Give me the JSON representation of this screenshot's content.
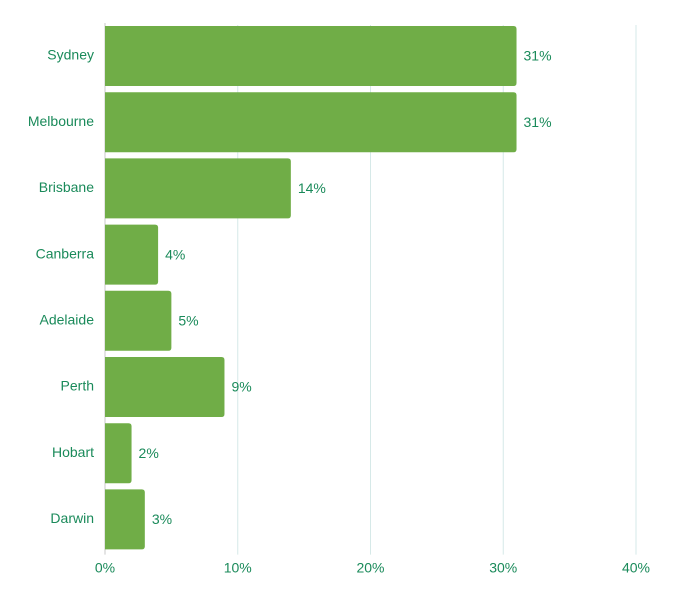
{
  "chart_data": {
    "type": "bar",
    "orientation": "horizontal",
    "categories": [
      "Sydney",
      "Melbourne",
      "Brisbane",
      "Canberra",
      "Adelaide",
      "Perth",
      "Hobart",
      "Darwin"
    ],
    "values": [
      31,
      31,
      14,
      4,
      5,
      9,
      2,
      3
    ],
    "data_labels": [
      "31%",
      "31%",
      "14%",
      "4%",
      "5%",
      "9%",
      "2%",
      "3%"
    ],
    "x_ticks": [
      "0%",
      "10%",
      "20%",
      "30%",
      "40%"
    ],
    "x_tick_values": [
      0,
      10,
      20,
      30,
      40
    ],
    "xlim": [
      0,
      40
    ],
    "grid": "vertical",
    "legend": "none",
    "title": "",
    "xlabel": "",
    "ylabel": ""
  },
  "colors": {
    "bar": "#70AD47",
    "text": "#1A8A5A",
    "grid": "#D6E9E8",
    "axis": "#C8C8C8"
  }
}
